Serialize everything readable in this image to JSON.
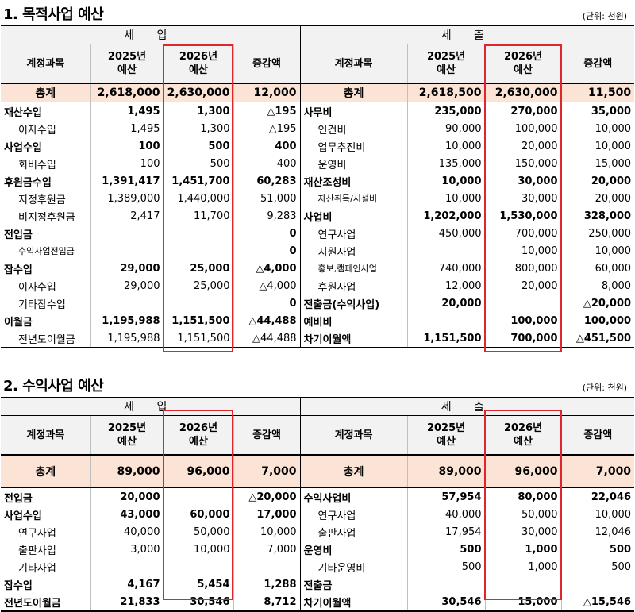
{
  "s1": {
    "title": "1. 목적사업 예산",
    "unit": "(단위: 천원)",
    "in_label": "세 입",
    "out_label": "세 출",
    "h_account": "계정과목",
    "h_2025": "2025년\n예산",
    "h_2026": "2026년\n예산",
    "h_diff": "증감액",
    "total": {
      "label": "총계",
      "a": "2,618,000",
      "b": "2,630,000",
      "c": "12,000",
      "label2": "총계",
      "a2": "2,618,500",
      "b2": "2,630,000",
      "c2": "11,500"
    },
    "rows": [
      {
        "l": "재산수입",
        "a": "1,495",
        "b": "1,300",
        "c": "△195",
        "lb": true,
        "li": false,
        "r": "사무비",
        "a2": "235,000",
        "b2": "270,000",
        "c2": "35,000",
        "rb": true,
        "ri": false
      },
      {
        "l": "이자수입",
        "a": "1,495",
        "b": "1,300",
        "c": "△195",
        "lb": false,
        "li": true,
        "r": "인건비",
        "a2": "90,000",
        "b2": "100,000",
        "c2": "10,000",
        "rb": false,
        "ri": true
      },
      {
        "l": "사업수입",
        "a": "100",
        "b": "500",
        "c": "400",
        "lb": true,
        "li": false,
        "r": "업무추진비",
        "a2": "10,000",
        "b2": "20,000",
        "c2": "10,000",
        "rb": false,
        "ri": true
      },
      {
        "l": "회비수입",
        "a": "100",
        "b": "500",
        "c": "400",
        "lb": false,
        "li": true,
        "r": "운영비",
        "a2": "135,000",
        "b2": "150,000",
        "c2": "15,000",
        "rb": false,
        "ri": true
      },
      {
        "l": "후원금수입",
        "a": "1,391,417",
        "b": "1,451,700",
        "c": "60,283",
        "lb": true,
        "li": false,
        "r": "재산조성비",
        "a2": "10,000",
        "b2": "30,000",
        "c2": "20,000",
        "rb": true,
        "ri": false
      },
      {
        "l": "지정후원금",
        "a": "1,389,000",
        "b": "1,440,000",
        "c": "51,000",
        "lb": false,
        "li": true,
        "r": "자산취득/시설비",
        "a2": "10,000",
        "b2": "30,000",
        "c2": "20,000",
        "rb": false,
        "ri": true,
        "rs": true
      },
      {
        "l": "비지정후원금",
        "a": "2,417",
        "b": "11,700",
        "c": "9,283",
        "lb": false,
        "li": true,
        "r": "사업비",
        "a2": "1,202,000",
        "b2": "1,530,000",
        "c2": "328,000",
        "rb": true,
        "ri": false
      },
      {
        "l": "전입금",
        "a": "",
        "b": "",
        "c": "0",
        "lb": true,
        "li": false,
        "cb": true,
        "r": "연구사업",
        "a2": "450,000",
        "b2": "700,000",
        "c2": "250,000",
        "rb": false,
        "ri": true
      },
      {
        "l": "수익사업전입금",
        "a": "",
        "b": "",
        "c": "0",
        "lb": false,
        "li": true,
        "ls": true,
        "cb": true,
        "r": "지원사업",
        "a2": "",
        "b2": "10,000",
        "c2": "10,000",
        "rb": false,
        "ri": true
      },
      {
        "l": "잡수입",
        "a": "29,000",
        "b": "25,000",
        "c": "△4,000",
        "lb": true,
        "li": false,
        "r": "홍보,캠페인사업",
        "a2": "740,000",
        "b2": "800,000",
        "c2": "60,000",
        "rb": false,
        "ri": true,
        "rs": true
      },
      {
        "l": "이자수입",
        "a": "29,000",
        "b": "25,000",
        "c": "△4,000",
        "lb": false,
        "li": true,
        "r": "후원사업",
        "a2": "12,000",
        "b2": "20,000",
        "c2": "8,000",
        "rb": false,
        "ri": true
      },
      {
        "l": "기타잡수입",
        "a": "",
        "b": "",
        "c": "0",
        "lb": false,
        "li": true,
        "cb": true,
        "r": "전출금(수익사업)",
        "a2": "20,000",
        "b2": "",
        "c2": "△20,000",
        "rb": true,
        "ri": false
      },
      {
        "l": "이월금",
        "a": "1,195,988",
        "b": "1,151,500",
        "c": "△44,488",
        "lb": true,
        "li": false,
        "r": "예비비",
        "a2": "",
        "b2": "100,000",
        "c2": "100,000",
        "rb": true,
        "ri": false
      },
      {
        "l": "전년도이월금",
        "a": "1,195,988",
        "b": "1,151,500",
        "c": "△44,488",
        "lb": false,
        "li": true,
        "r": "차기이월액",
        "a2": "1,151,500",
        "b2": "700,000",
        "c2": "△451,500",
        "rb": true,
        "ri": false
      }
    ]
  },
  "s2": {
    "title": "2. 수익사업 예산",
    "unit": "(단위: 천원)",
    "in_label": "세 입",
    "out_label": "세 출",
    "h_account": "계정과목",
    "h_2025": "2025년\n예산",
    "h_2026": "2026년\n예산",
    "h_diff": "증감액",
    "total": {
      "label": "총계",
      "a": "89,000",
      "b": "96,000",
      "c": "7,000",
      "label2": "총계",
      "a2": "89,000",
      "b2": "96,000",
      "c2": "7,000"
    },
    "rows": [
      {
        "l": "전입금",
        "a": "20,000",
        "b": "",
        "c": "△20,000",
        "lb": true,
        "li": false,
        "r": "수익사업비",
        "a2": "57,954",
        "b2": "80,000",
        "c2": "22,046",
        "rb": true,
        "ri": false
      },
      {
        "l": "사업수입",
        "a": "43,000",
        "b": "60,000",
        "c": "17,000",
        "lb": true,
        "li": false,
        "r": "연구사업",
        "a2": "40,000",
        "b2": "50,000",
        "c2": "10,000",
        "rb": false,
        "ri": true
      },
      {
        "l": "연구사업",
        "a": "40,000",
        "b": "50,000",
        "c": "10,000",
        "lb": false,
        "li": true,
        "r": "출판사업",
        "a2": "17,954",
        "b2": "30,000",
        "c2": "12,046",
        "rb": false,
        "ri": true
      },
      {
        "l": "출판사업",
        "a": "3,000",
        "b": "10,000",
        "c": "7,000",
        "lb": false,
        "li": true,
        "r": "운영비",
        "a2": "500",
        "b2": "1,000",
        "c2": "500",
        "rb": true,
        "ri": false
      },
      {
        "l": "기타사업",
        "a": "",
        "b": "",
        "c": "",
        "lb": false,
        "li": true,
        "r": "기타운영비",
        "a2": "500",
        "b2": "1,000",
        "c2": "500",
        "rb": false,
        "ri": true
      },
      {
        "l": "잡수입",
        "a": "4,167",
        "b": "5,454",
        "c": "1,288",
        "lb": true,
        "li": false,
        "r": "전출금",
        "a2": "",
        "b2": "",
        "c2": "",
        "rb": true,
        "ri": false
      },
      {
        "l": "전년도이월금",
        "a": "21,833",
        "b": "30,546",
        "c": "8,712",
        "lb": true,
        "li": false,
        "r": "차기이월액",
        "a2": "30,546",
        "b2": "15,000",
        "c2": "△15,546",
        "rb": true,
        "ri": false
      }
    ]
  }
}
